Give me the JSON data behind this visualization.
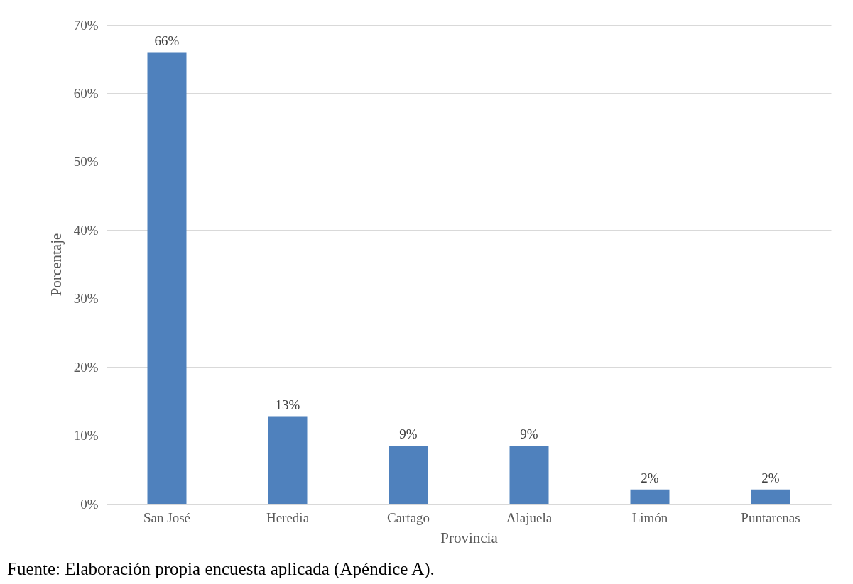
{
  "chart_data": {
    "type": "bar",
    "xlabel": "Provincia",
    "ylabel": "Porcentaje",
    "categories": [
      "San José",
      "Heredia",
      "Cartago",
      "Alajuela",
      "Limón",
      "Puntarenas"
    ],
    "values": [
      66,
      12.8,
      8.5,
      8.5,
      2.1,
      2.1
    ],
    "value_labels": [
      "66%",
      "13%",
      "9%",
      "9%",
      "2%",
      "2%"
    ],
    "color": "#4f81bd",
    "ylim": [
      0,
      70
    ],
    "yticks": [
      {
        "value": 0,
        "label": "0%"
      },
      {
        "value": 10,
        "label": "10%"
      },
      {
        "value": 20,
        "label": "20%"
      },
      {
        "value": 30,
        "label": "30%"
      },
      {
        "value": 40,
        "label": "40%"
      },
      {
        "value": 50,
        "label": "50%"
      },
      {
        "value": 60,
        "label": "60%"
      },
      {
        "value": 70,
        "label": "70%"
      }
    ],
    "grid": "y",
    "annotations": [
      "Fuente: Elaboración propia encuesta aplicada (Apéndice A)."
    ]
  }
}
